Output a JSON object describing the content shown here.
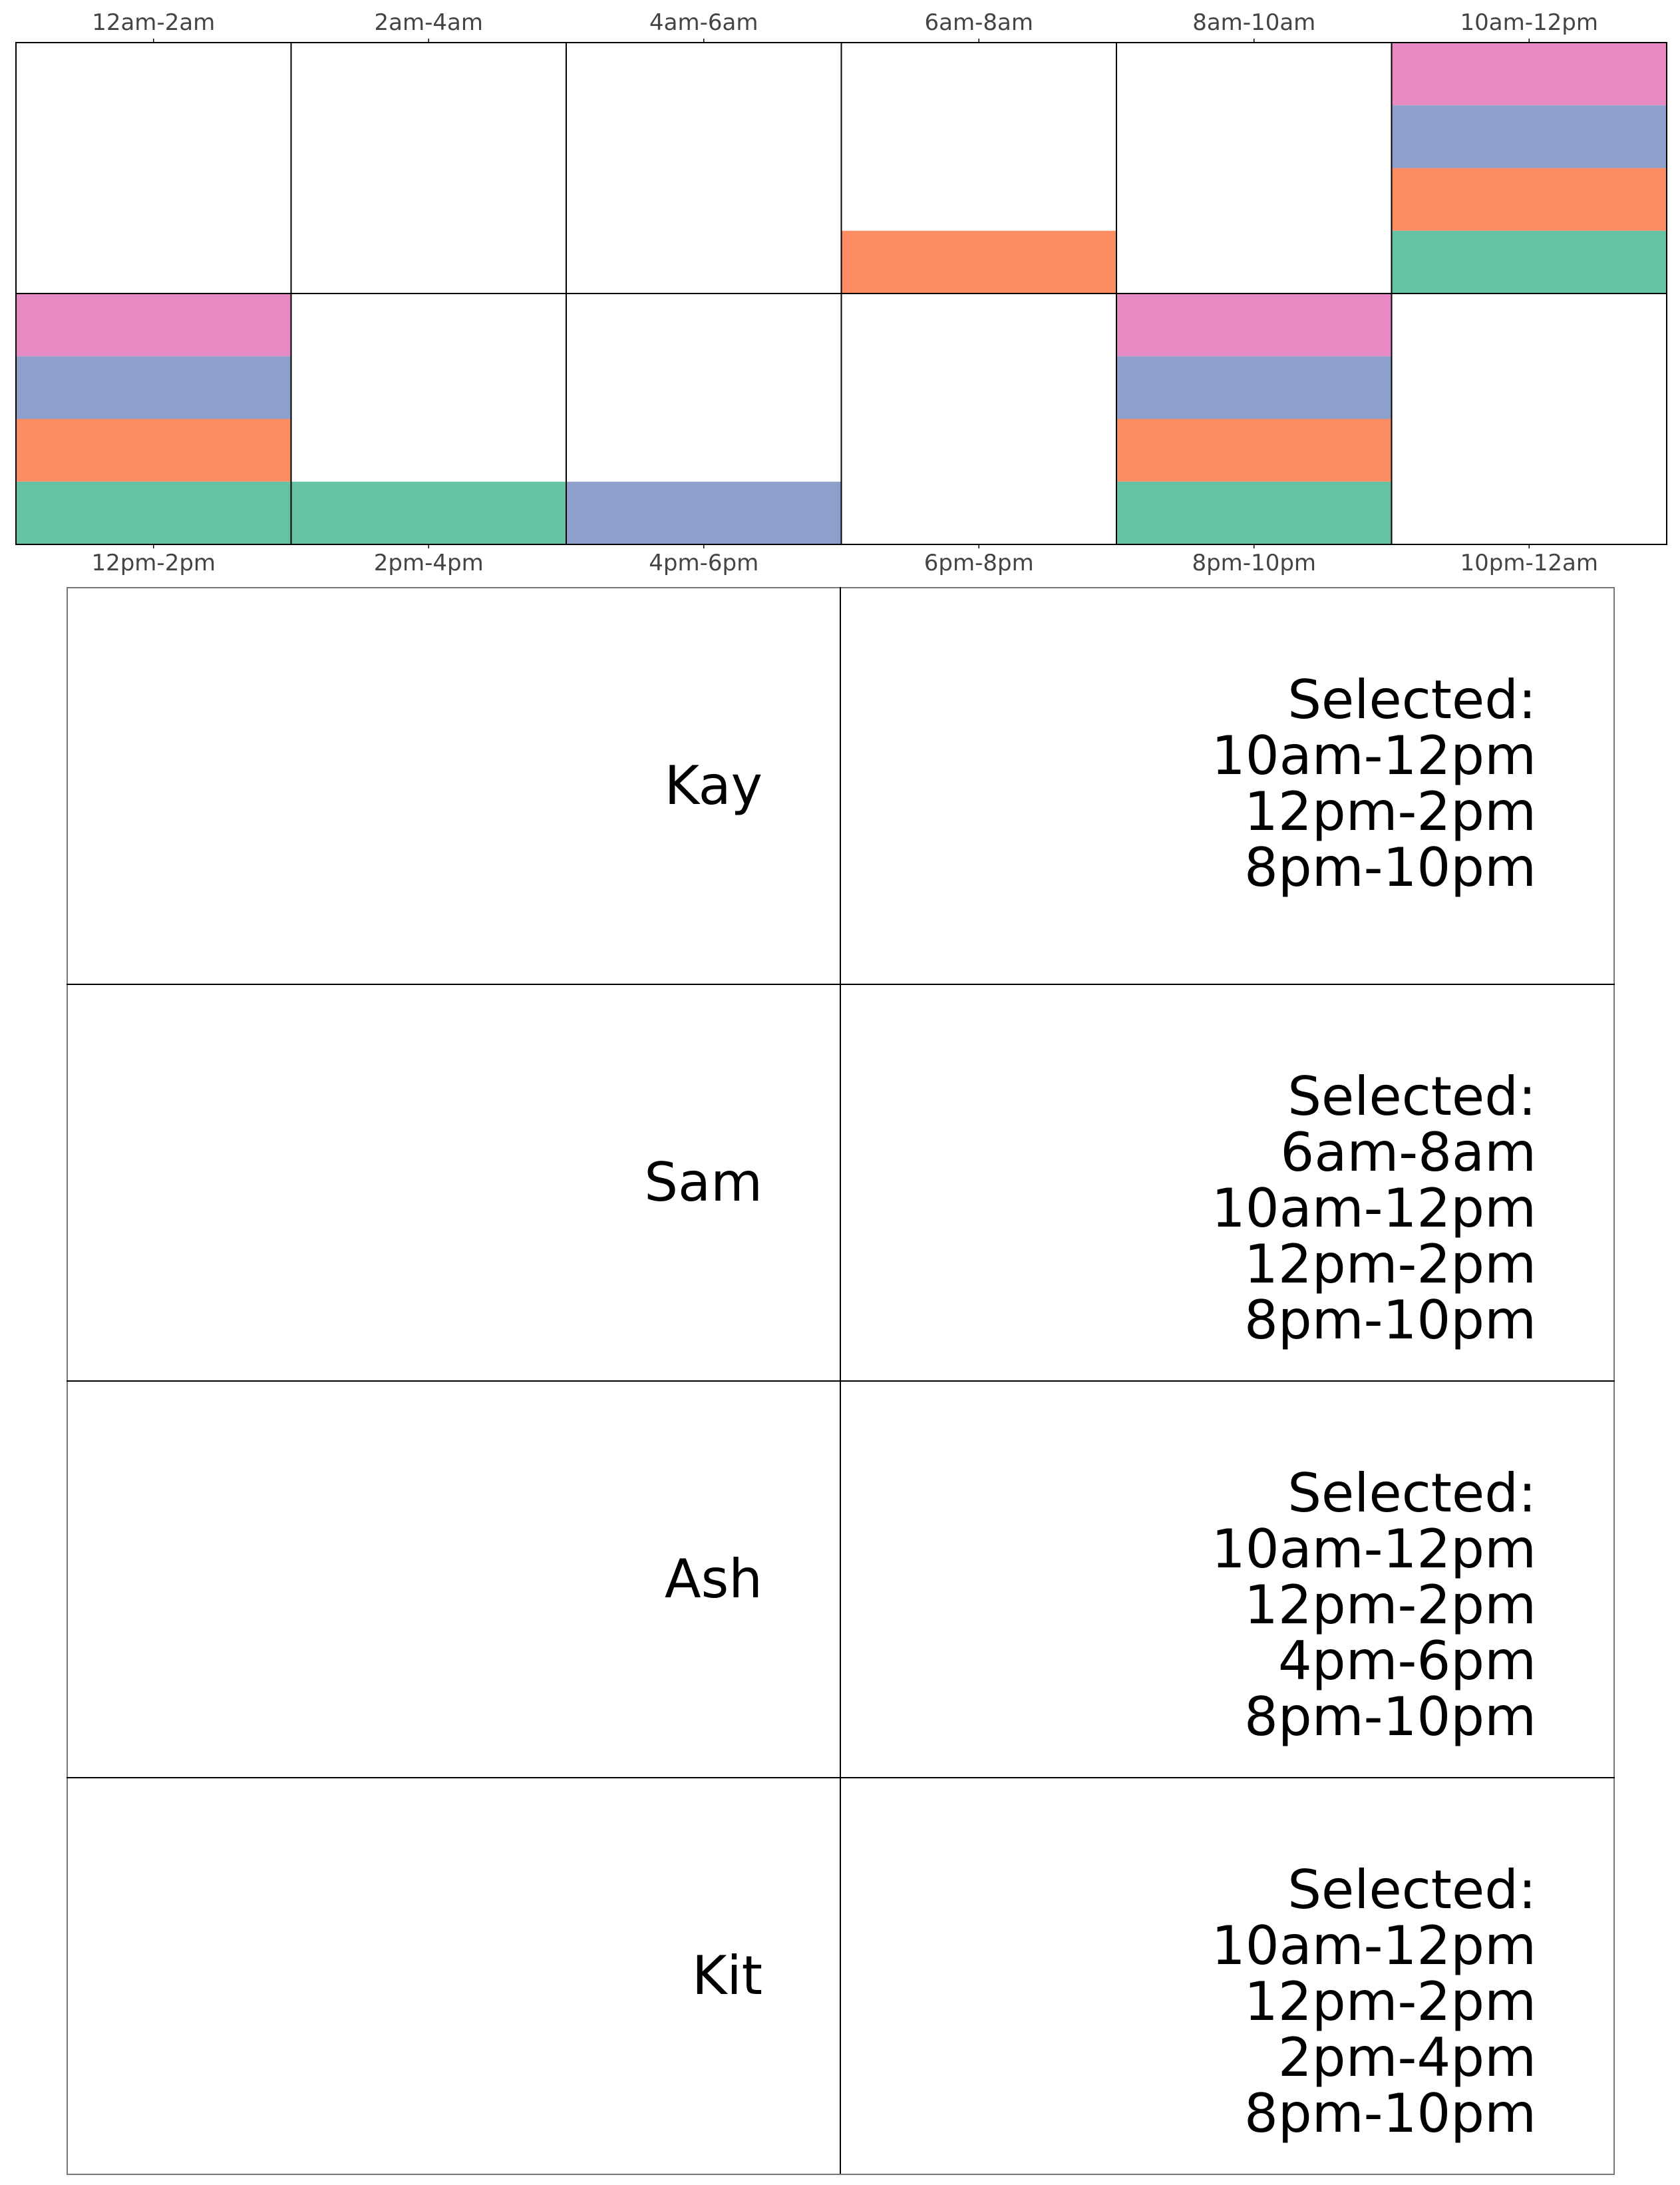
{
  "colors": {
    "Kay": "#e78ac3",
    "Sam": "#fc8d62",
    "Ash": "#8da0cb",
    "Kit": "#66c2a5"
  },
  "chart_data": {
    "type": "heatmap",
    "top_row_slots": [
      "12am-2am",
      "2am-4am",
      "4am-6am",
      "6am-8am",
      "8am-10am",
      "10am-12pm"
    ],
    "bottom_row_slots": [
      "12pm-2pm",
      "2pm-4pm",
      "4pm-6pm",
      "6pm-8pm",
      "8pm-10pm",
      "10pm-12am"
    ],
    "stack_order_top_to_bottom": [
      "Kay",
      "Ash",
      "Sam",
      "Kit"
    ],
    "selections": {
      "12am-2am": [],
      "2am-4am": [],
      "4am-6am": [],
      "6am-8am": [
        "Sam"
      ],
      "8am-10am": [],
      "10am-12pm": [
        "Kay",
        "Ash",
        "Sam",
        "Kit"
      ],
      "12pm-2pm": [
        "Kay",
        "Ash",
        "Sam",
        "Kit"
      ],
      "2pm-4pm": [
        "Kit"
      ],
      "4pm-6pm": [
        "Ash"
      ],
      "6pm-8pm": [],
      "8pm-10pm": [
        "Kay",
        "Ash",
        "Sam",
        "Kit"
      ],
      "10pm-12am": []
    }
  },
  "people": [
    {
      "name": "Kay",
      "selected_heading": "Selected:",
      "selected_slots": [
        "10am-12pm",
        "12pm-2pm",
        "8pm-10pm"
      ]
    },
    {
      "name": "Sam",
      "selected_heading": "Selected:",
      "selected_slots": [
        "6am-8am",
        "10am-12pm",
        "12pm-2pm",
        "8pm-10pm"
      ]
    },
    {
      "name": "Ash",
      "selected_heading": "Selected:",
      "selected_slots": [
        "10am-12pm",
        "12pm-2pm",
        "4pm-6pm",
        "8pm-10pm"
      ]
    },
    {
      "name": "Kit",
      "selected_heading": "Selected:",
      "selected_slots": [
        "10am-12pm",
        "12pm-2pm",
        "2pm-4pm",
        "8pm-10pm"
      ]
    }
  ]
}
